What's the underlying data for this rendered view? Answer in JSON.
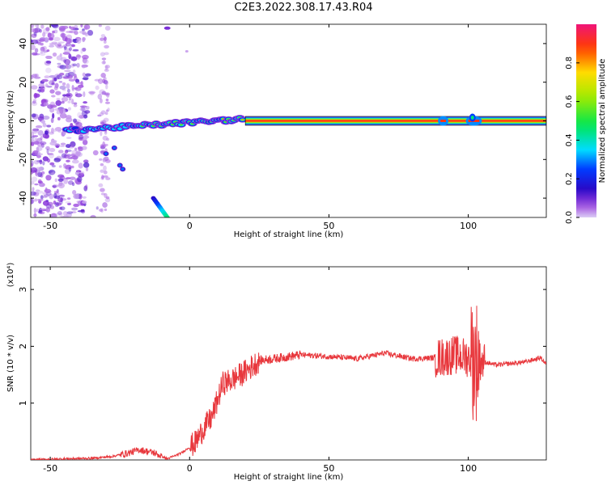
{
  "title": "C2E3.2022.308.17.43.R04",
  "chart_data": [
    {
      "type": "heatmap",
      "xlabel": "Height of straight line (km)",
      "ylabel": "Frequency (Hz)",
      "xlim": [
        -57,
        128
      ],
      "ylim": [
        -50,
        50
      ],
      "xticks": [
        -50,
        0,
        50,
        100
      ],
      "yticks": [
        -40,
        -20,
        0,
        20,
        40
      ],
      "colorbar": {
        "label": "Normalized spectral amplitude",
        "range": [
          0,
          1
        ],
        "ticks": [
          0.0,
          0.2,
          0.4,
          0.6,
          0.8
        ]
      },
      "features": {
        "steady_line_frequency_hz": 0,
        "steady_line_start_km": 20,
        "noise_band_km": [
          -57,
          -30
        ],
        "descending_chirp": [
          [
            -13,
            -40
          ],
          [
            -8,
            -50
          ]
        ]
      }
    },
    {
      "type": "line",
      "xlabel": "Height of straight line (km)",
      "ylabel": "SNR (10 * v/v)",
      "scale_label": "(x10⁴)",
      "xlim": [
        -57,
        128
      ],
      "ylim": [
        0,
        3.4
      ],
      "xticks": [
        -50,
        0,
        50,
        100
      ],
      "yticks": [
        1,
        2,
        3
      ],
      "series": [
        {
          "color": "#e8383d",
          "points": [
            [
              -57,
              0.0
            ],
            [
              -45,
              0.02
            ],
            [
              -35,
              0.03
            ],
            [
              -28,
              0.06
            ],
            [
              -22,
              0.12
            ],
            [
              -18,
              0.18
            ],
            [
              -13,
              0.13
            ],
            [
              -8,
              0.02
            ],
            [
              -3,
              0.12
            ],
            [
              2,
              0.3
            ],
            [
              5,
              0.55
            ],
            [
              8,
              0.75
            ],
            [
              10,
              1.05
            ],
            [
              12,
              1.35
            ],
            [
              15,
              1.4
            ],
            [
              20,
              1.55
            ],
            [
              25,
              1.75
            ],
            [
              30,
              1.78
            ],
            [
              40,
              1.85
            ],
            [
              50,
              1.82
            ],
            [
              60,
              1.78
            ],
            [
              70,
              1.88
            ],
            [
              80,
              1.78
            ],
            [
              90,
              1.8
            ],
            [
              95,
              1.85
            ],
            [
              100,
              1.8
            ],
            [
              104,
              1.75
            ],
            [
              110,
              1.67
            ],
            [
              120,
              1.72
            ],
            [
              126,
              1.8
            ],
            [
              128,
              1.68
            ]
          ]
        }
      ]
    }
  ]
}
